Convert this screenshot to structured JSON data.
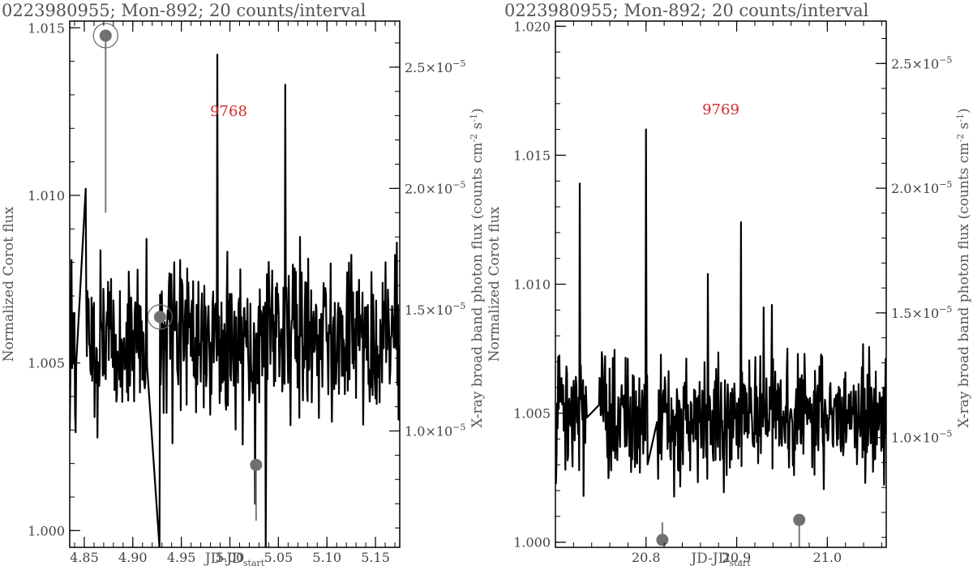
{
  "chart_data": [
    {
      "type": "line",
      "title": "0223980955; Mon-892; 20 counts/interval",
      "xlabel_main": "JD-JD",
      "xlabel_sub": "start",
      "ylabel_left": "Normalized Corot flux",
      "ylabel_right": "X-ray broad band photon flux (counts cm",
      "ylabel_right_exp1": "-2",
      "ylabel_right_mid": " s",
      "ylabel_right_exp2": "-1",
      "ylabel_right_end": ")",
      "annotation": "9768",
      "xlim": [
        4.835,
        5.175
      ],
      "ylim": [
        0.9995,
        1.0152
      ],
      "y2lim": [
        5.2e-06,
        2.69e-05
      ],
      "xticks": [
        "4.85",
        "4.90",
        "4.95",
        "5.00",
        "5.05",
        "5.10",
        "5.15"
      ],
      "xtick_values": [
        4.85,
        4.9,
        4.95,
        5.0,
        5.05,
        5.1,
        5.15
      ],
      "yticks": [
        "1.000",
        "1.005",
        "1.010",
        "1.015"
      ],
      "ytick_values": [
        1.0,
        1.005,
        1.01,
        1.015
      ],
      "y2ticks": [
        {
          "value": 1e-05,
          "mantissa": "1.0×10",
          "exp": "−5"
        },
        {
          "value": 1.5e-05,
          "mantissa": "1.5×10",
          "exp": "−5"
        },
        {
          "value": 2e-05,
          "mantissa": "2.0×10",
          "exp": "−5"
        },
        {
          "value": 2.5e-05,
          "mantissa": "2.5×10",
          "exp": "−5"
        }
      ],
      "corot_series": {
        "seed": 9768,
        "x_start": 4.835,
        "x_end": 5.175,
        "n": 560,
        "mean": 1.0057,
        "spread": 0.0022,
        "gaps": [
          [
            4.842,
            4.851
          ],
          [
            4.915,
            4.927
          ]
        ],
        "spikes": [
          [
            4.85,
            1.0102
          ],
          [
            4.987,
            1.0142
          ],
          [
            5.026,
            1.0099
          ],
          [
            5.057,
            1.0133
          ],
          [
            5.026,
            1.0008
          ],
          [
            4.927,
            0.9995
          ],
          [
            5.037,
            0.9995
          ]
        ]
      },
      "xray_points": [
        {
          "x": 4.872,
          "y": 2.63e-05,
          "yerr_low": 1.9e-05,
          "circled": true
        },
        {
          "x": 4.928,
          "y": 1.47e-05,
          "yerr_low": 1.42e-05,
          "circled": true
        },
        {
          "x": 5.027,
          "y": 8.6e-06,
          "yerr_low": 6.3e-06,
          "circled": false
        }
      ]
    },
    {
      "type": "line",
      "title": "0223980955; Mon-892; 20 counts/interval",
      "xlabel_main": "JD-JD",
      "xlabel_sub": "start",
      "ylabel_left": "Normalized Corot flux",
      "ylabel_right": "X-ray broad band photon flux (counts cm",
      "ylabel_right_exp1": "-2",
      "ylabel_right_mid": " s",
      "ylabel_right_exp2": "-1",
      "ylabel_right_end": ")",
      "annotation": "9769",
      "xlim": [
        20.7,
        21.065
      ],
      "ylim": [
        0.9998,
        1.0202
      ],
      "y2lim": [
        5.6e-06,
        2.67e-05
      ],
      "xticks": [
        "20.8",
        "20.9",
        "21.0"
      ],
      "xtick_values": [
        20.8,
        20.9,
        21.0
      ],
      "yticks": [
        "1.000",
        "1.005",
        "1.010",
        "1.015",
        "1.020"
      ],
      "ytick_values": [
        1.0,
        1.005,
        1.01,
        1.015,
        1.02
      ],
      "y2ticks": [
        {
          "value": 1e-05,
          "mantissa": "1.0×10",
          "exp": "−5"
        },
        {
          "value": 1.5e-05,
          "mantissa": "1.5×10",
          "exp": "−5"
        },
        {
          "value": 2e-05,
          "mantissa": "2.0×10",
          "exp": "−5"
        },
        {
          "value": 2.5e-05,
          "mantissa": "2.5×10",
          "exp": "−5"
        }
      ],
      "corot_series": {
        "seed": 9769,
        "x_start": 20.7,
        "x_end": 21.065,
        "n": 600,
        "mean": 1.0049,
        "spread": 0.0022,
        "gaps": [
          [
            20.735,
            20.748
          ],
          [
            20.802,
            20.812
          ]
        ],
        "spikes": [
          [
            20.727,
            1.0139
          ],
          [
            20.8,
            1.016
          ],
          [
            20.868,
            1.0104
          ],
          [
            20.905,
            1.0124
          ],
          [
            20.939,
            1.0092
          ],
          [
            20.93,
            1.0091
          ]
        ]
      },
      "xray_points": [
        {
          "x": 20.818,
          "y": 5.9e-06,
          "yerr_high": 6.6e-06,
          "circled": false
        },
        {
          "x": 20.969,
          "y": 6.7e-06,
          "yerr_low": 5.6e-06,
          "circled": false
        }
      ]
    }
  ]
}
